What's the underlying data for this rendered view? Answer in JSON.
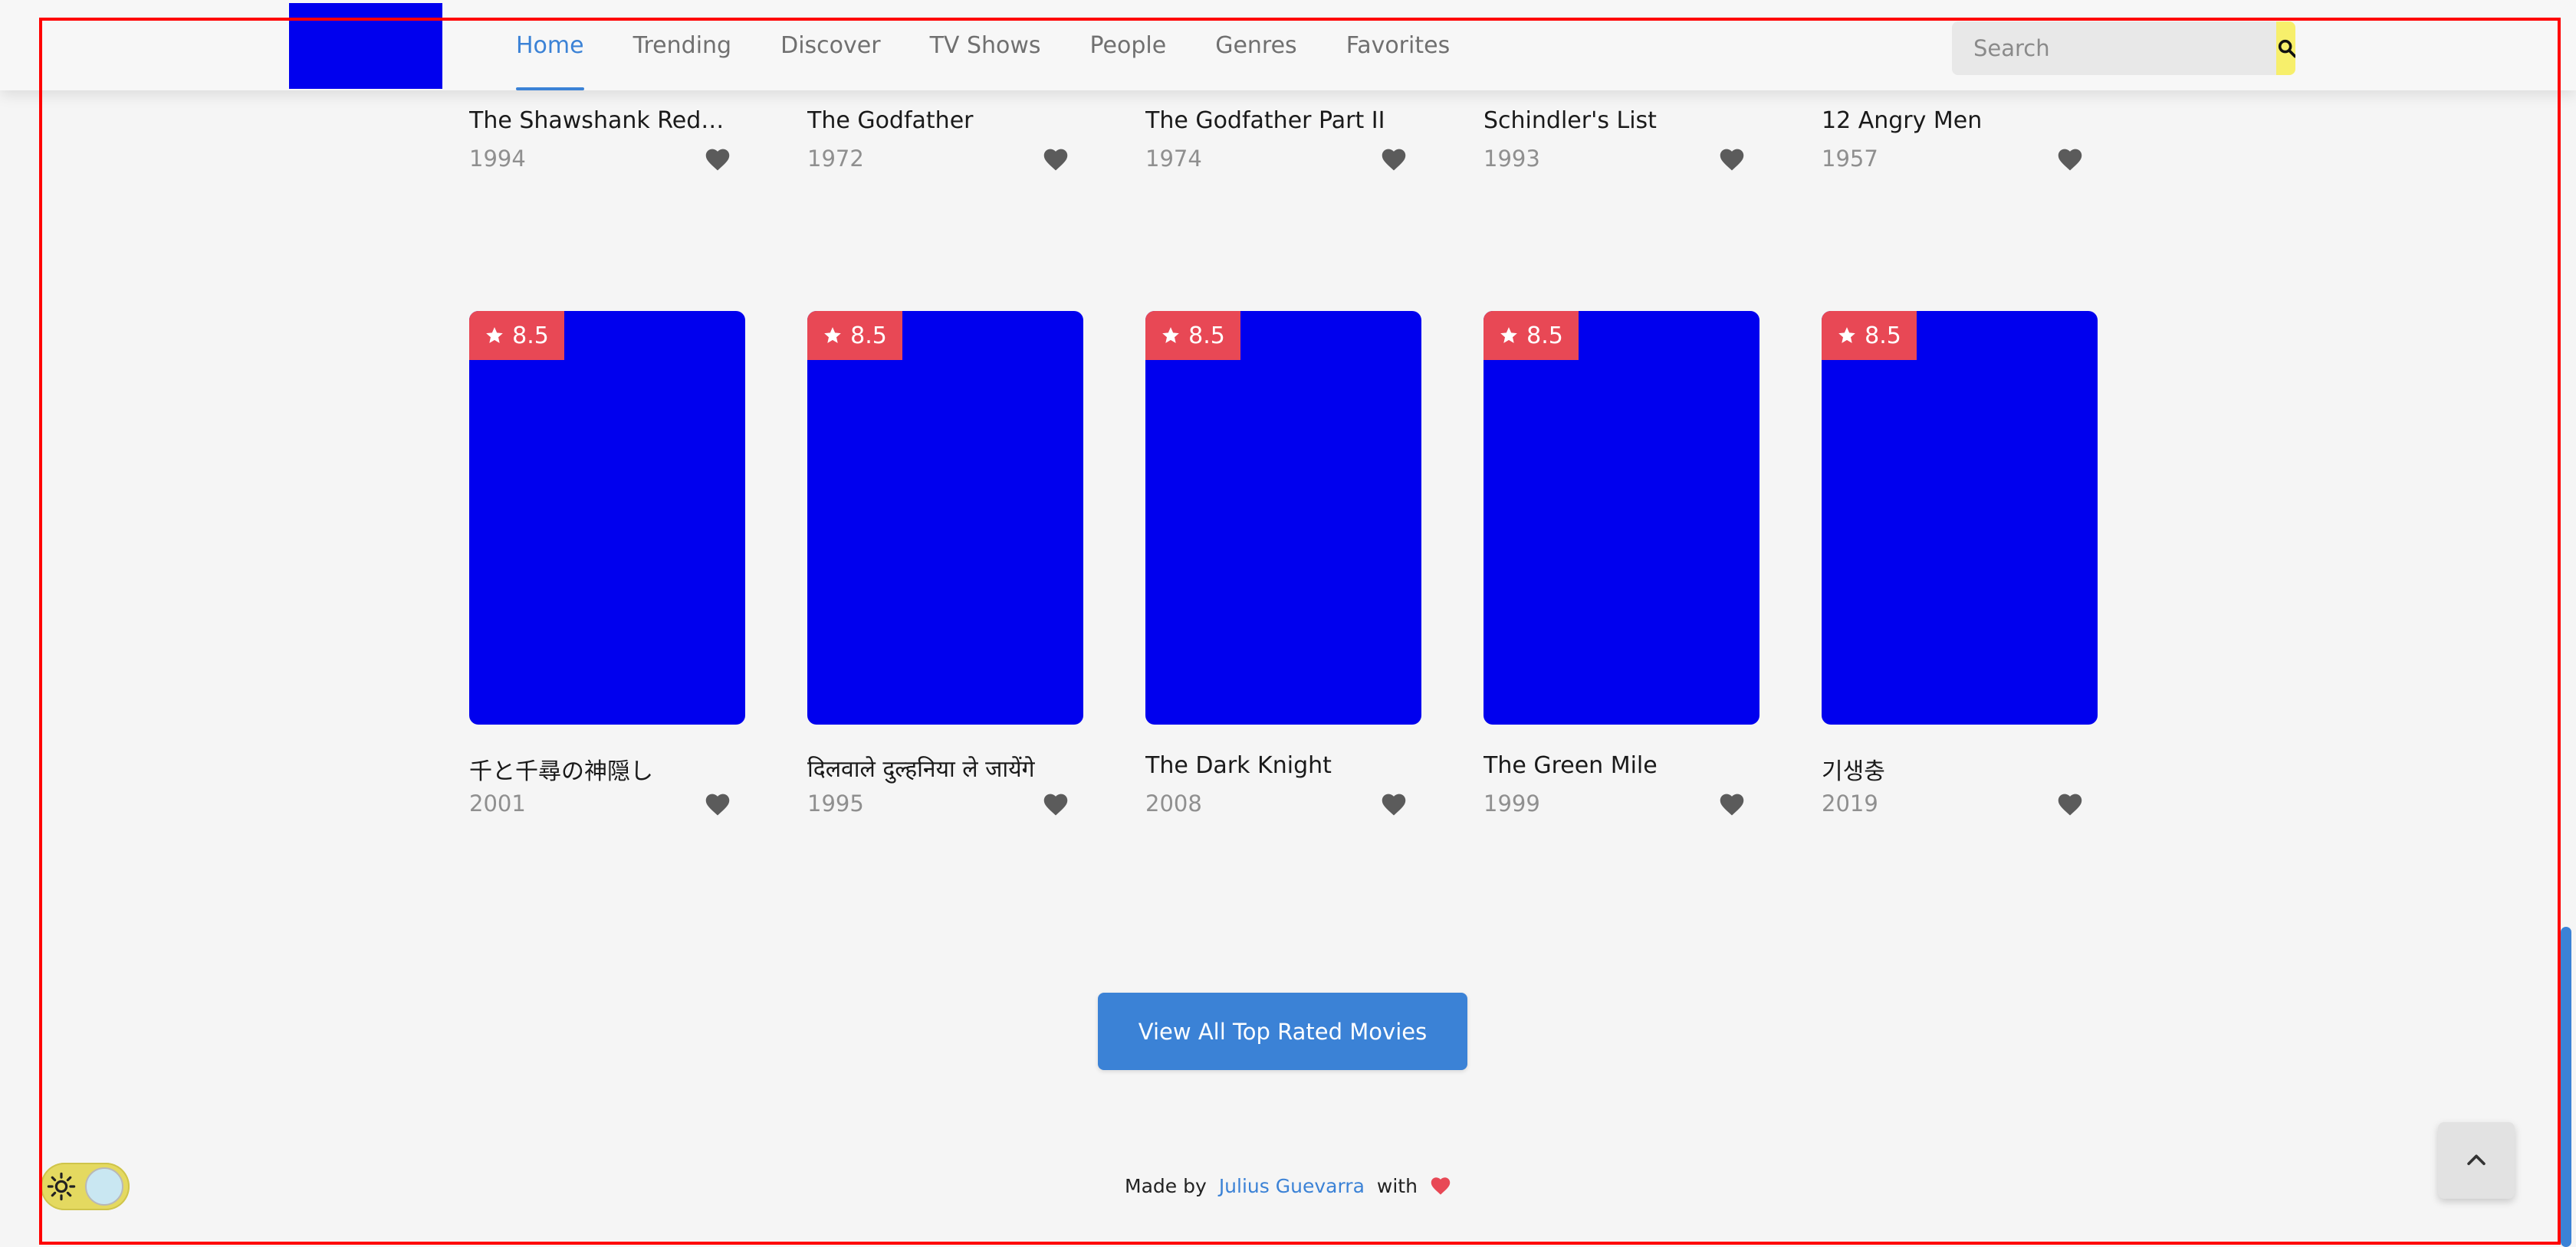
{
  "nav": {
    "items": [
      {
        "label": "Home",
        "active": true
      },
      {
        "label": "Trending",
        "active": false
      },
      {
        "label": "Discover",
        "active": false
      },
      {
        "label": "TV Shows",
        "active": false
      },
      {
        "label": "People",
        "active": false
      },
      {
        "label": "Genres",
        "active": false
      },
      {
        "label": "Favorites",
        "active": false
      }
    ],
    "search": {
      "placeholder": "Search",
      "value": ""
    }
  },
  "top_row": [
    {
      "title": "The Shawshank Redem…",
      "year": "1994"
    },
    {
      "title": "The Godfather",
      "year": "1972"
    },
    {
      "title": "The Godfather Part II",
      "year": "1974"
    },
    {
      "title": "Schindler's List",
      "year": "1993"
    },
    {
      "title": "12 Angry Men",
      "year": "1957"
    }
  ],
  "bottom_row": [
    {
      "rating": "8.5",
      "title": "千と千尋の神隠し",
      "year": "2001"
    },
    {
      "rating": "8.5",
      "title": "दिलवाले दुल्हनिया ले जायेंगे",
      "year": "1995"
    },
    {
      "rating": "8.5",
      "title": "The Dark Knight",
      "year": "2008"
    },
    {
      "rating": "8.5",
      "title": "The Green Mile",
      "year": "1999"
    },
    {
      "rating": "8.5",
      "title": "기생충",
      "year": "2019"
    }
  ],
  "view_all_label": "View All Top Rated Movies",
  "footer": {
    "made_by": "Made by",
    "author": "Julius Guevarra",
    "with": "with"
  },
  "colors": {
    "accent": "#3b82d6",
    "rating_badge": "#e84855",
    "search_button": "#f7ef6b",
    "poster_placeholder": "#0000ee"
  },
  "icons": {
    "search": "search-icon",
    "favorite": "heart-icon",
    "rating": "star-icon",
    "theme": "sun-icon",
    "scroll_top": "chevron-up-icon"
  }
}
